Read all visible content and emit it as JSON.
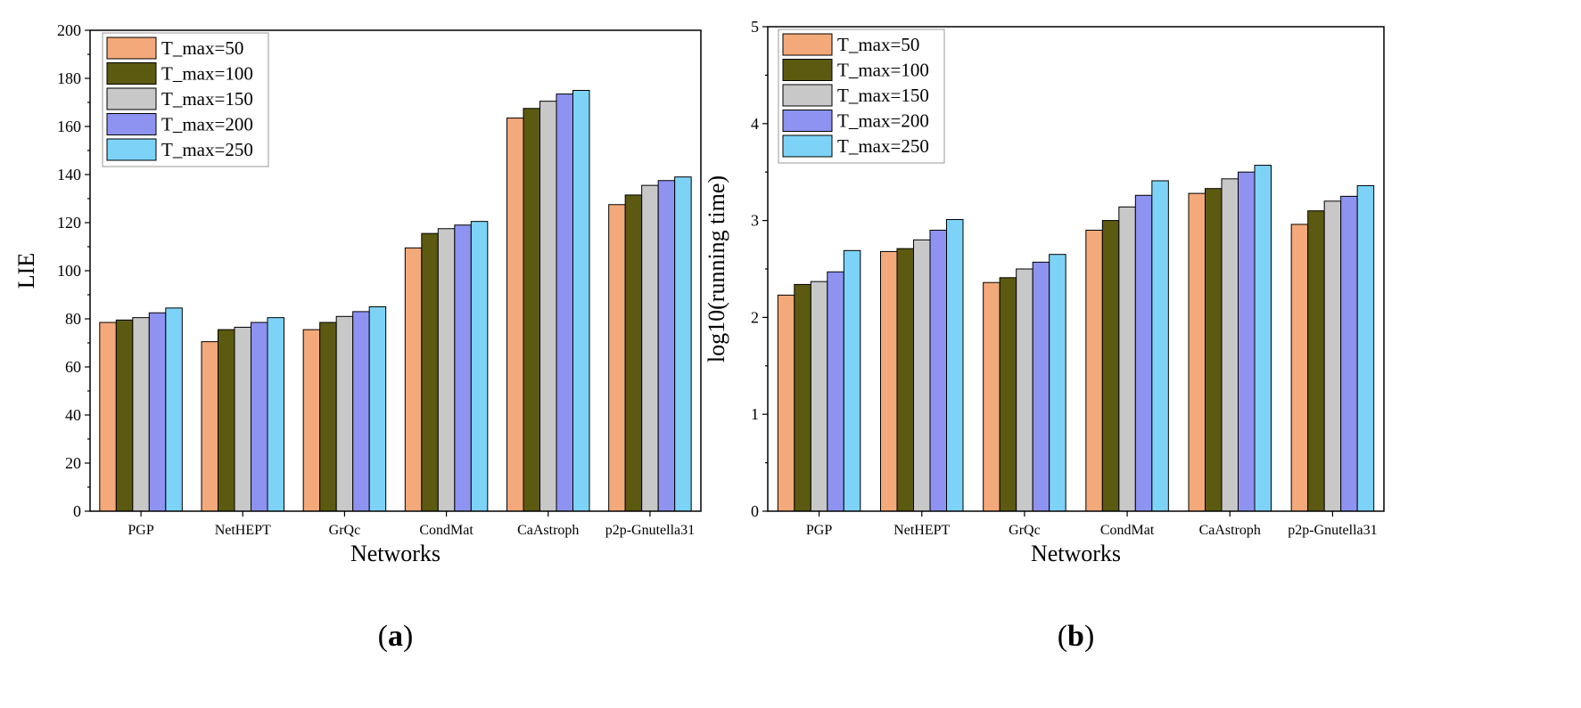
{
  "colors": [
    "#F4A97A",
    "#5C5A10",
    "#C8C8C8",
    "#8E93F2",
    "#7DD3F7"
  ],
  "panel_labels": [
    "(a)",
    "(b)"
  ],
  "chart_data": [
    {
      "type": "bar",
      "panel": "a",
      "categories": [
        "PGP",
        "NetHEPT",
        "GrQc",
        "CondMat",
        "CaAstroph",
        "p2p-Gnutella31"
      ],
      "xlabel": "Networks",
      "ylabel": "LIE",
      "ylim": [
        0,
        200
      ],
      "yticks": [
        "0",
        "20",
        "40",
        "60",
        "80",
        "100",
        "120",
        "140",
        "160",
        "180",
        "200"
      ],
      "legend_position": "top-left",
      "series": [
        {
          "name": "T_max=50",
          "values": [
            78.5,
            70.5,
            75.5,
            109.5,
            163.5,
            127.5
          ]
        },
        {
          "name": "T_max=100",
          "values": [
            79.5,
            75.5,
            78.5,
            115.5,
            167.5,
            131.5
          ]
        },
        {
          "name": "T_max=150",
          "values": [
            80.5,
            76.5,
            81,
            117.5,
            170.5,
            135.5
          ]
        },
        {
          "name": "T_max=200",
          "values": [
            82.5,
            78.5,
            83,
            119,
            173.5,
            137.5
          ]
        },
        {
          "name": "T_max=250",
          "values": [
            84.5,
            80.5,
            85,
            120.5,
            175,
            139
          ]
        }
      ]
    },
    {
      "type": "bar",
      "panel": "b",
      "categories": [
        "PGP",
        "NetHEPT",
        "GrQc",
        "CondMat",
        "CaAstroph",
        "p2p-Gnutella31"
      ],
      "xlabel": "Networks",
      "ylabel": "log10(running time)",
      "ylim": [
        0,
        5
      ],
      "yticks": [
        "0",
        "1",
        "2",
        "3",
        "4",
        "5"
      ],
      "legend_position": "top-left",
      "series": [
        {
          "name": "T_max=50",
          "values": [
            2.23,
            2.68,
            2.36,
            2.9,
            3.28,
            2.96
          ]
        },
        {
          "name": "T_max=100",
          "values": [
            2.34,
            2.71,
            2.41,
            3.0,
            3.33,
            3.1
          ]
        },
        {
          "name": "T_max=150",
          "values": [
            2.37,
            2.8,
            2.5,
            3.14,
            3.43,
            3.2
          ]
        },
        {
          "name": "T_max=200",
          "values": [
            2.47,
            2.9,
            2.57,
            3.26,
            3.5,
            3.25
          ]
        },
        {
          "name": "T_max=250",
          "values": [
            2.69,
            3.01,
            2.65,
            3.41,
            3.57,
            3.36
          ]
        }
      ]
    }
  ]
}
